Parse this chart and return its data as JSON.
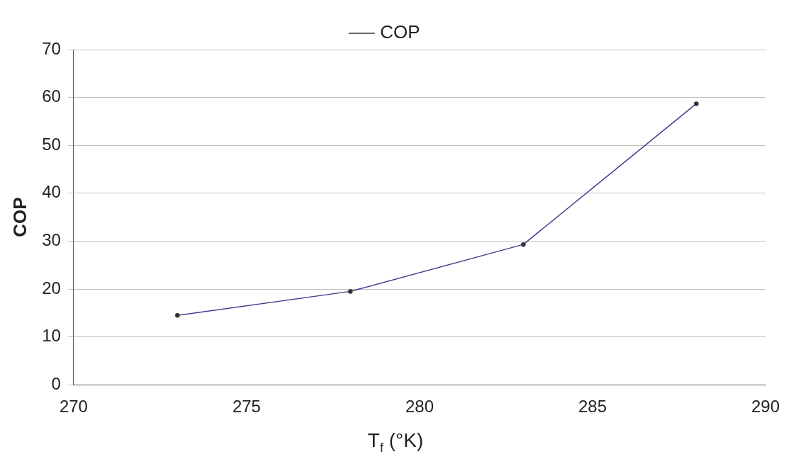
{
  "chart_data": {
    "type": "line",
    "xlabel": "T$_{f}$ (°K)",
    "ylabel": "COP",
    "x": [
      273,
      278,
      283,
      288
    ],
    "series": [
      {
        "name": "COP",
        "color": "#3c3c8c",
        "values": [
          14.5,
          19.5,
          29.3,
          58.7
        ]
      }
    ],
    "xlim": [
      270,
      290
    ],
    "xticks": [
      270,
      275,
      280,
      285,
      290
    ],
    "ylim": [
      0,
      70
    ],
    "yticks": [
      0,
      10,
      20,
      30,
      40,
      50,
      60,
      70
    ],
    "grid": "y",
    "legend": "top",
    "marker": "circle",
    "line_style": "solid"
  }
}
